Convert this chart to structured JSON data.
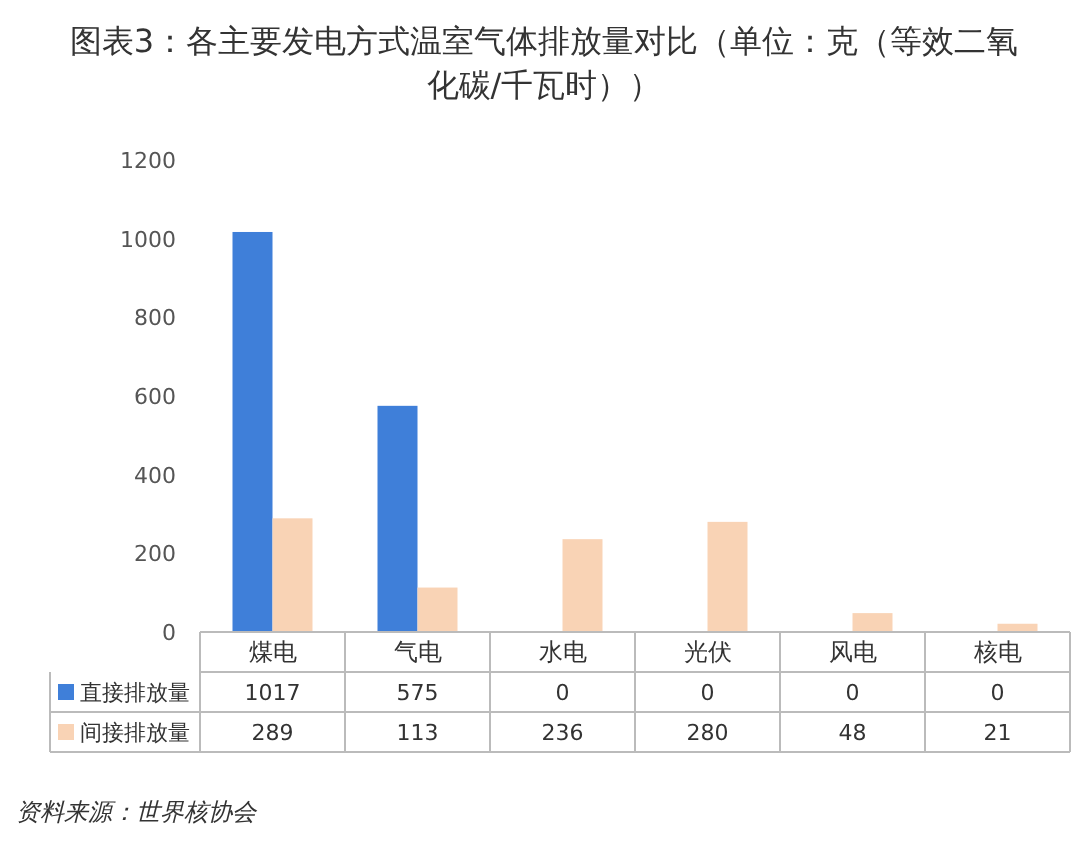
{
  "chart_data": {
    "type": "bar",
    "title": "图表3：各主要发电方式温室气体排放量对比（单位：克（等效二氧化碳/千瓦时））",
    "categories": [
      "煤电",
      "气电",
      "水电",
      "光伏",
      "风电",
      "核电"
    ],
    "series": [
      {
        "name": "直接排放量",
        "color": "#3f7fd9",
        "values": [
          1017,
          575,
          0,
          0,
          0,
          0
        ]
      },
      {
        "name": "间接排放量",
        "color": "#f9d3b5",
        "values": [
          289,
          113,
          236,
          280,
          48,
          21
        ]
      }
    ],
    "ylim": [
      0,
      1200
    ],
    "yticks": [
      0,
      200,
      400,
      600,
      800,
      1000,
      1200
    ],
    "data_labels": true,
    "legend": "bottom",
    "annotations": [
      "资料来源：世界核协会"
    ]
  }
}
